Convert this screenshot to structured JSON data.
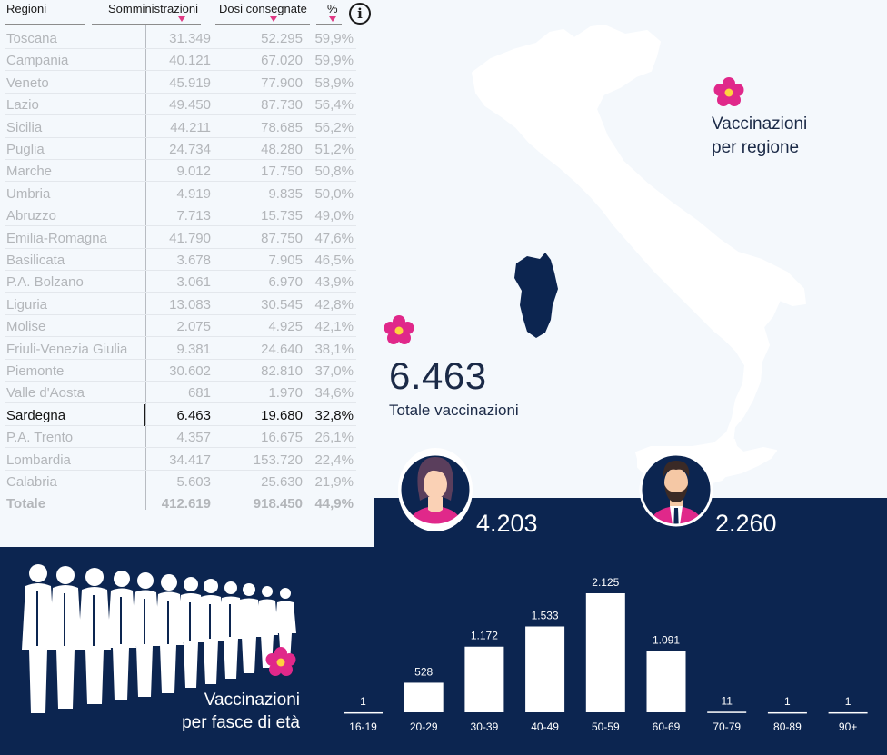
{
  "table": {
    "headers": {
      "region": "Regioni",
      "somministrazioni": "Somministrazioni",
      "dosi": "Dosi consegnate",
      "pct": "%"
    },
    "rows": [
      {
        "name": "Toscana",
        "somm": "31.349",
        "dosi": "52.295",
        "pct": "59,9%"
      },
      {
        "name": "Campania",
        "somm": "40.121",
        "dosi": "67.020",
        "pct": "59,9%"
      },
      {
        "name": "Veneto",
        "somm": "45.919",
        "dosi": "77.900",
        "pct": "58,9%"
      },
      {
        "name": "Lazio",
        "somm": "49.450",
        "dosi": "87.730",
        "pct": "56,4%"
      },
      {
        "name": "Sicilia",
        "somm": "44.211",
        "dosi": "78.685",
        "pct": "56,2%"
      },
      {
        "name": "Puglia",
        "somm": "24.734",
        "dosi": "48.280",
        "pct": "51,2%"
      },
      {
        "name": "Marche",
        "somm": "9.012",
        "dosi": "17.750",
        "pct": "50,8%"
      },
      {
        "name": "Umbria",
        "somm": "4.919",
        "dosi": "9.835",
        "pct": "50,0%"
      },
      {
        "name": "Abruzzo",
        "somm": "7.713",
        "dosi": "15.735",
        "pct": "49,0%"
      },
      {
        "name": "Emilia-Romagna",
        "somm": "41.790",
        "dosi": "87.750",
        "pct": "47,6%"
      },
      {
        "name": "Basilicata",
        "somm": "3.678",
        "dosi": "7.905",
        "pct": "46,5%"
      },
      {
        "name": "P.A. Bolzano",
        "somm": "3.061",
        "dosi": "6.970",
        "pct": "43,9%"
      },
      {
        "name": "Liguria",
        "somm": "13.083",
        "dosi": "30.545",
        "pct": "42,8%"
      },
      {
        "name": "Molise",
        "somm": "2.075",
        "dosi": "4.925",
        "pct": "42,1%"
      },
      {
        "name": "Friuli-Venezia Giulia",
        "somm": "9.381",
        "dosi": "24.640",
        "pct": "38,1%"
      },
      {
        "name": "Piemonte",
        "somm": "30.602",
        "dosi": "82.810",
        "pct": "37,0%"
      },
      {
        "name": "Valle d'Aosta",
        "somm": "681",
        "dosi": "1.970",
        "pct": "34,6%"
      },
      {
        "name": "Sardegna",
        "somm": "6.463",
        "dosi": "19.680",
        "pct": "32,8%",
        "selected": true
      },
      {
        "name": "P.A. Trento",
        "somm": "4.357",
        "dosi": "16.675",
        "pct": "26,1%"
      },
      {
        "name": "Lombardia",
        "somm": "34.417",
        "dosi": "153.720",
        "pct": "22,4%"
      },
      {
        "name": "Calabria",
        "somm": "5.603",
        "dosi": "25.630",
        "pct": "21,9%"
      }
    ],
    "total": {
      "name": "Totale",
      "somm": "412.619",
      "dosi": "918.450",
      "pct": "44,9%"
    }
  },
  "map": {
    "title_line1": "Vaccinazioni",
    "title_line2": "per regione",
    "selected_region": "Sardegna",
    "total_value": "6.463",
    "total_label": "Totale vaccinazioni"
  },
  "gender": {
    "female_value": "4.203",
    "male_value": "2.260"
  },
  "age": {
    "title_line1": "Vaccinazioni",
    "title_line2": "per fasce di età"
  },
  "chart_data": {
    "type": "bar",
    "categories": [
      "16-19",
      "20-29",
      "30-39",
      "40-49",
      "50-59",
      "60-69",
      "70-79",
      "80-89",
      "90+"
    ],
    "values": [
      1,
      528,
      1172,
      1533,
      2125,
      1091,
      11,
      1,
      1
    ],
    "labels": [
      "1",
      "528",
      "1.172",
      "1.533",
      "2.125",
      "1.091",
      "11",
      "1",
      "1"
    ],
    "ylim": [
      0,
      2125
    ]
  },
  "colors": {
    "navy": "#0c2550",
    "accent_pink": "#e0288a",
    "background": "#f4f8fc"
  }
}
